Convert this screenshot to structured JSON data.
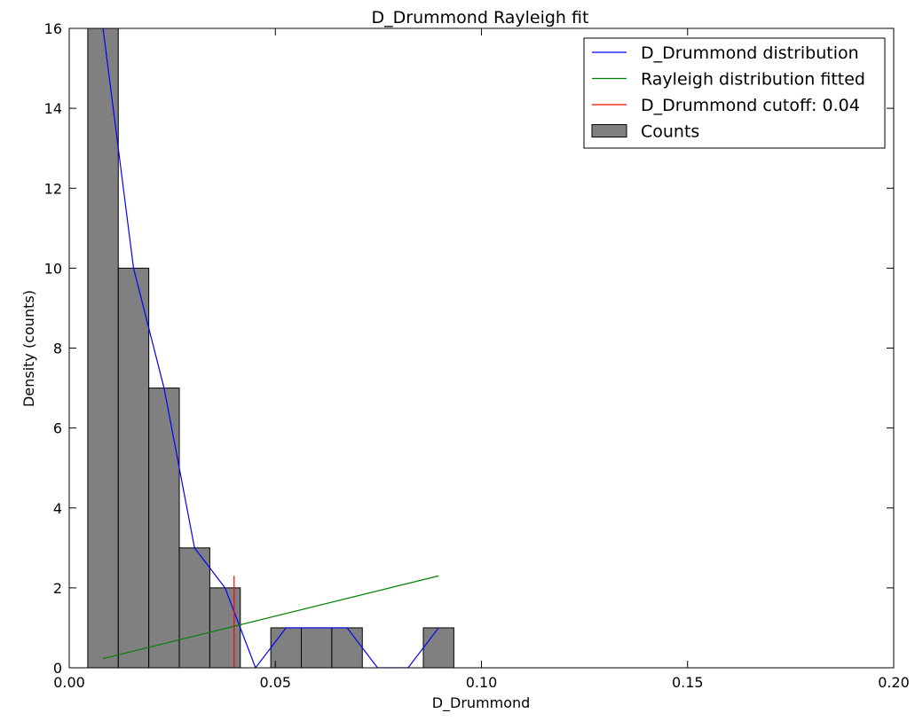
{
  "chart_data": {
    "type": "bar",
    "title": "D_Drummond Rayleigh fit",
    "xlabel": "D_Drummond",
    "ylabel": "Density (counts)",
    "xlim": [
      0.0,
      0.2
    ],
    "ylim": [
      0,
      16
    ],
    "xticks": [
      0.0,
      0.05,
      0.1,
      0.15,
      0.2
    ],
    "xtick_labels": [
      "0.00",
      "0.05",
      "0.10",
      "0.15",
      "0.20"
    ],
    "yticks": [
      0,
      2,
      4,
      6,
      8,
      10,
      12,
      14,
      16
    ],
    "ytick_labels": [
      "0",
      "2",
      "4",
      "6",
      "8",
      "10",
      "12",
      "14",
      "16"
    ],
    "grid": false,
    "legend_position": "top-right",
    "histogram": {
      "name": "Counts",
      "color": "#808080",
      "bins": [
        {
          "x0": 0.0045,
          "x1": 0.0119,
          "count": 16
        },
        {
          "x0": 0.0119,
          "x1": 0.0193,
          "count": 10
        },
        {
          "x0": 0.0193,
          "x1": 0.0267,
          "count": 7
        },
        {
          "x0": 0.0267,
          "x1": 0.0341,
          "count": 3
        },
        {
          "x0": 0.0341,
          "x1": 0.0415,
          "count": 2
        },
        {
          "x0": 0.0415,
          "x1": 0.0489,
          "count": 0
        },
        {
          "x0": 0.0489,
          "x1": 0.0563,
          "count": 1
        },
        {
          "x0": 0.0563,
          "x1": 0.0637,
          "count": 1
        },
        {
          "x0": 0.0637,
          "x1": 0.0711,
          "count": 1
        },
        {
          "x0": 0.0711,
          "x1": 0.0785,
          "count": 0
        },
        {
          "x0": 0.0785,
          "x1": 0.0859,
          "count": 0
        },
        {
          "x0": 0.0859,
          "x1": 0.0933,
          "count": 1
        }
      ]
    },
    "series": [
      {
        "name": "D_Drummond distribution",
        "type": "line",
        "color": "#0000ff",
        "x": [
          0.0082,
          0.0156,
          0.023,
          0.0304,
          0.0378,
          0.0452,
          0.0526,
          0.06,
          0.0674,
          0.0748,
          0.0822,
          0.0896
        ],
        "y": [
          16,
          10,
          7,
          3,
          2,
          0,
          1,
          1,
          1,
          0,
          0,
          1
        ]
      },
      {
        "name": "Rayleigh distribution fitted",
        "type": "line",
        "color": "#008000",
        "x": [
          0.0082,
          0.0896
        ],
        "y": [
          0.23,
          2.3
        ]
      },
      {
        "name": "D_Drummond cutoff: 0.04",
        "type": "vline",
        "color": "#ff0000",
        "x": 0.04,
        "y": [
          0,
          2.3
        ]
      }
    ],
    "legend": [
      {
        "label": "D_Drummond distribution",
        "kind": "line",
        "color": "#0000ff"
      },
      {
        "label": "Rayleigh distribution fitted",
        "kind": "line",
        "color": "#008000"
      },
      {
        "label": "D_Drummond cutoff: 0.04",
        "kind": "line",
        "color": "#ff0000"
      },
      {
        "label": "Counts",
        "kind": "patch",
        "color": "#808080"
      }
    ]
  }
}
